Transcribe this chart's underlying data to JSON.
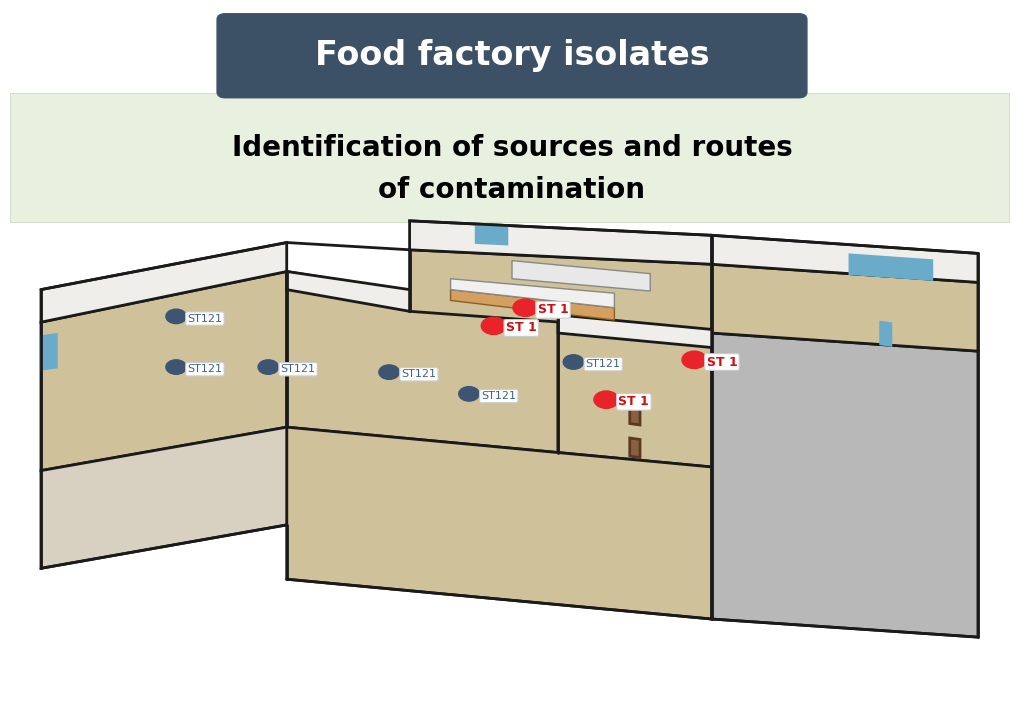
{
  "title": "Food factory isolates",
  "title_bg_color": "#3d5166",
  "title_text_color": "#ffffff",
  "subtitle_line1": "Identification of sources and routes",
  "subtitle_line2": "of contamination",
  "subtitle_bg_color": "#e8f0df",
  "subtitle_text_color": "#000000",
  "bg_color": "#ffffff",
  "C_BEIGE": "#cfc29a",
  "C_GRAY": "#b8b8b8",
  "C_WALL_W": "#f0eeea",
  "C_WALL_S": "#d8d0c0",
  "C_EDGE": "#1a1a1a",
  "C_BLUE": "#6aabca",
  "C_BROWN": "#8b6040",
  "st1_dot_color": "#e8232a",
  "st1_text_color": "#cc1111",
  "st121_dot_color": "#3d5473",
  "st121_text_color": "#3d6090",
  "lw_wall": 2.0,
  "st121_data": [
    [
      0.56,
      0.5,
      0.572,
      0.497
    ],
    [
      0.458,
      0.456,
      0.47,
      0.453
    ],
    [
      0.172,
      0.493,
      0.183,
      0.49
    ],
    [
      0.262,
      0.493,
      0.274,
      0.49
    ],
    [
      0.38,
      0.486,
      0.392,
      0.483
    ],
    [
      0.172,
      0.563,
      0.183,
      0.56
    ]
  ],
  "st1_data": [
    [
      0.592,
      0.448,
      0.604,
      0.445
    ],
    [
      0.678,
      0.503,
      0.69,
      0.5
    ],
    [
      0.482,
      0.55,
      0.494,
      0.547
    ],
    [
      0.513,
      0.575,
      0.525,
      0.572
    ]
  ]
}
